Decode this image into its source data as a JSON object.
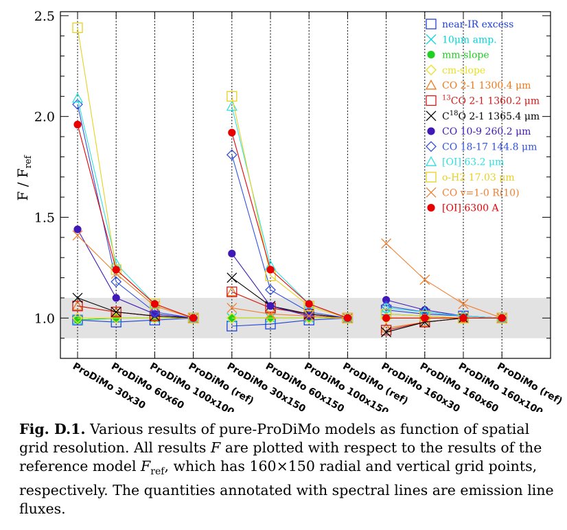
{
  "chart_data": {
    "type": "line",
    "ylabel_main": "F / F",
    "ylabel_sub": "ref",
    "ylim": [
      0.8,
      2.52
    ],
    "yticks": [
      "1.0",
      "1.5",
      "2.0",
      "2.5"
    ],
    "band": [
      0.9,
      1.1
    ],
    "categories": [
      "ProDiMo 30x30",
      "ProDiMo 60x60",
      "ProDiMo 100x100",
      "ProDiMo (ref)",
      "ProDiMo 30x150",
      "ProDiMo 60x150",
      "ProDiMo 100x150",
      "ProDiMo (ref)",
      "ProDiMo 160x30",
      "ProDiMo 160x60",
      "ProDiMo 160x100",
      "ProDiMo (ref)"
    ],
    "groups": [
      [
        0,
        3
      ],
      [
        4,
        7
      ],
      [
        8,
        11
      ]
    ],
    "legend_position": "top-right",
    "series": [
      {
        "name": "near-IR excess",
        "color": "#2040d8",
        "marker": "square",
        "values": [
          0.99,
          0.98,
          0.99,
          1.0,
          0.96,
          0.97,
          0.99,
          1.0,
          1.04,
          1.02,
          1.01,
          1.0
        ]
      },
      {
        "name": "10μm amp.",
        "color": "#00d8d8",
        "marker": "x",
        "values": [
          0.99,
          1.0,
          1.0,
          1.0,
          1.0,
          1.0,
          1.0,
          1.0,
          1.02,
          1.01,
          1.0,
          1.0
        ]
      },
      {
        "name": "mm-slope",
        "color": "#20d020",
        "marker": "dot",
        "values": [
          0.99,
          1.0,
          1.0,
          1.0,
          1.0,
          1.0,
          1.0,
          1.0,
          1.0,
          1.0,
          1.0,
          1.0
        ]
      },
      {
        "name": "cm-slope",
        "color": "#e8e020",
        "marker": "diamond",
        "values": [
          1.0,
          1.0,
          1.0,
          1.0,
          1.0,
          1.0,
          1.0,
          1.0,
          1.0,
          1.0,
          1.0,
          1.0
        ]
      },
      {
        "name": "CO 2-1 1300.4 μm",
        "color": "#f07818",
        "marker": "triangle",
        "values": [
          1.06,
          1.03,
          1.01,
          1.0,
          1.13,
          1.05,
          1.02,
          1.0,
          0.95,
          0.98,
          1.0,
          1.0
        ]
      },
      {
        "name": "13CO 2-1 1360.2 μm",
        "color": "#d01818",
        "marker": "square",
        "values": [
          1.06,
          1.03,
          1.01,
          1.0,
          1.13,
          1.05,
          1.02,
          1.0,
          0.94,
          0.98,
          1.0,
          1.0
        ]
      },
      {
        "name": "C18O 2-1 1365.4 μm",
        "color": "#000000",
        "marker": "x",
        "values": [
          1.1,
          1.03,
          1.01,
          1.0,
          1.2,
          1.06,
          1.02,
          1.0,
          0.93,
          0.98,
          1.0,
          1.0
        ]
      },
      {
        "name": "CO 10-9 260.2 μm",
        "color": "#4018b8",
        "marker": "dot",
        "values": [
          1.44,
          1.1,
          1.02,
          1.0,
          1.32,
          1.06,
          1.01,
          1.0,
          1.09,
          1.04,
          1.01,
          1.0
        ]
      },
      {
        "name": "CO 18-17 144.8 μm",
        "color": "#3050e0",
        "marker": "diamond",
        "values": [
          2.06,
          1.18,
          1.03,
          1.0,
          1.81,
          1.14,
          1.03,
          1.0,
          1.06,
          1.03,
          1.01,
          1.0
        ]
      },
      {
        "name": "[OI] 63.2 μm",
        "color": "#30e0e0",
        "marker": "triangle",
        "values": [
          2.09,
          1.27,
          1.07,
          1.0,
          2.05,
          1.26,
          1.07,
          1.0,
          1.05,
          1.03,
          1.01,
          1.0
        ]
      },
      {
        "name": "o-H2 17.03 μm",
        "color": "#e8d020",
        "marker": "square",
        "values": [
          2.44,
          1.24,
          1.07,
          1.0,
          2.1,
          1.21,
          1.06,
          1.0,
          1.02,
          1.01,
          1.0,
          1.0
        ]
      },
      {
        "name": "CO v=1-0 R(10)",
        "color": "#f08030",
        "marker": "x",
        "values": [
          1.41,
          1.22,
          1.06,
          1.0,
          1.05,
          1.02,
          1.01,
          1.0,
          1.37,
          1.19,
          1.07,
          1.0
        ]
      },
      {
        "name": "[OI] 6300 A",
        "color": "#e80000",
        "marker": "dot",
        "values": [
          1.96,
          1.24,
          1.07,
          1.0,
          1.92,
          1.24,
          1.07,
          1.0,
          1.0,
          1.0,
          1.0,
          1.0
        ]
      }
    ],
    "legend_labels": [
      {
        "text": "near-IR excess"
      },
      {
        "pre": "10",
        "mid": "μm",
        "post": " amp."
      },
      {
        "text": "mm-slope"
      },
      {
        "text": "cm-slope"
      },
      {
        "text": "CO 2-1 1300.4 μm"
      },
      {
        "sup": "13",
        "text": "CO 2-1 1360.2 μm"
      },
      {
        "pre": "C",
        "sup": "18",
        "post": "O 2-1 1365.4 μm"
      },
      {
        "text": "CO 10-9 260.2 μm"
      },
      {
        "text": "CO 18-17 144.8 μm"
      },
      {
        "text": "[OI] 63.2 μm"
      },
      {
        "text": "o-H2 17.03 μm"
      },
      {
        "text": "CO v=1-0 R(10)"
      },
      {
        "text": "[OI] 6300 A"
      }
    ]
  },
  "caption": {
    "fig_label": "Fig. D.1.",
    "part1": " Various results of pure-ProDiMo models as function of spatial grid resolution. All results ",
    "var_F": "F",
    "part2": " are plotted with respect to the results of the reference model ",
    "var_Fref": "F",
    "var_Fref_sub": "ref",
    "part3": ", which has 160×150 radial and vertical grid points, respectively. The quantities annotated with spectral lines are emission line fluxes."
  }
}
